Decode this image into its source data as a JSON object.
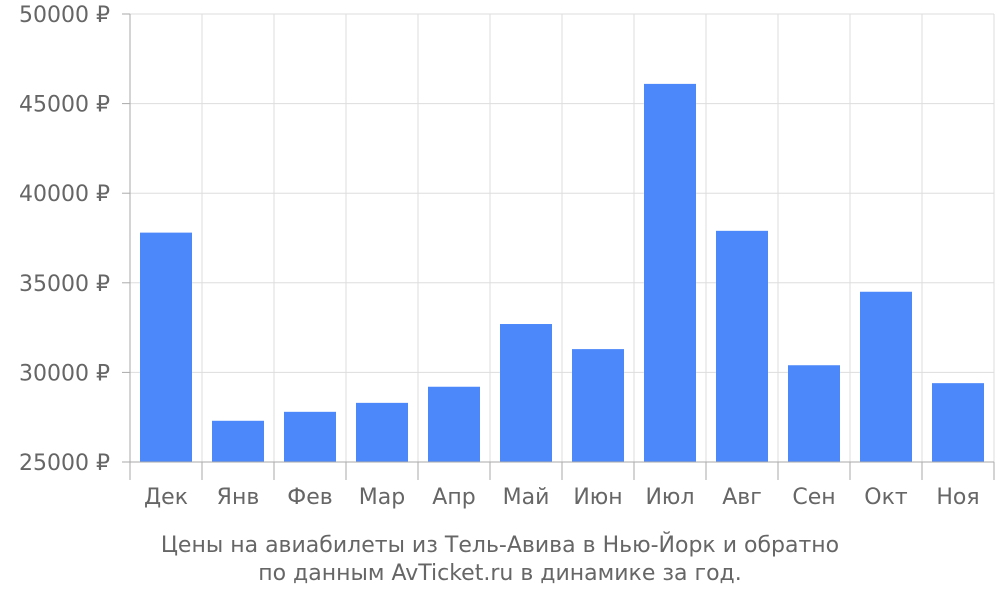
{
  "chart_data": {
    "type": "bar",
    "categories": [
      "Дек",
      "Янв",
      "Фев",
      "Мар",
      "Апр",
      "Май",
      "Июн",
      "Июл",
      "Авг",
      "Сен",
      "Окт",
      "Ноя"
    ],
    "values": [
      37800,
      27300,
      27800,
      28300,
      29200,
      32700,
      31300,
      46100,
      37900,
      30400,
      34500,
      29400
    ],
    "ylim": [
      25000,
      50000
    ],
    "yticks": [
      25000,
      30000,
      35000,
      40000,
      45000,
      50000
    ],
    "ytick_labels": [
      "25000 ₽",
      "30000 ₽",
      "35000 ₽",
      "40000 ₽",
      "45000 ₽",
      "50000 ₽"
    ],
    "grid": true,
    "bar_color": "#4d88fa",
    "caption_line1": "Цены на авиабилеты из Тель-Авива в Нью-Йорк и обратно",
    "caption_line2": "по данным AvTicket.ru в динамике за год."
  }
}
